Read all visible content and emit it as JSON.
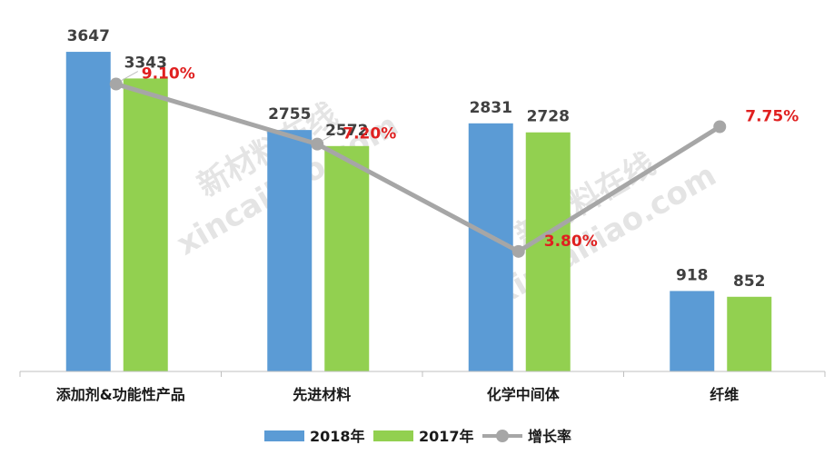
{
  "colors": {
    "series_2018": "#5b9bd5",
    "series_2017": "#92d050",
    "growth_line": "#a6a6a6",
    "growth_label": "#e02020",
    "value_label": "#404040"
  },
  "watermark": {
    "line1": "新材料在线",
    "line2": "xincailiao.com"
  },
  "chart_data": {
    "type": "bar",
    "categories": [
      "添加剂&功能性产品",
      "先进材料",
      "化学中间体",
      "纤维"
    ],
    "series": [
      {
        "name": "2018年",
        "values": [
          3647,
          2755,
          2831,
          918
        ]
      },
      {
        "name": "2017年",
        "values": [
          3343,
          2572,
          2728,
          852
        ]
      }
    ],
    "value_labels": {
      "2018年": [
        "3647",
        "2755",
        "2831",
        "918"
      ],
      "2017年": [
        "3343",
        "2572",
        "2728",
        "852"
      ]
    },
    "line_series": {
      "name": "增长率",
      "type": "line",
      "values": [
        9.1,
        7.2,
        3.8,
        7.75
      ],
      "labels": [
        "9.10%",
        "7.20%",
        "3.80%",
        "7.75%"
      ]
    },
    "ylim": [
      0,
      4000
    ],
    "growth_ylim": [
      0,
      11.1
    ],
    "grid": false,
    "legend_position": "bottom",
    "title": "",
    "xlabel": "",
    "ylabel": ""
  }
}
